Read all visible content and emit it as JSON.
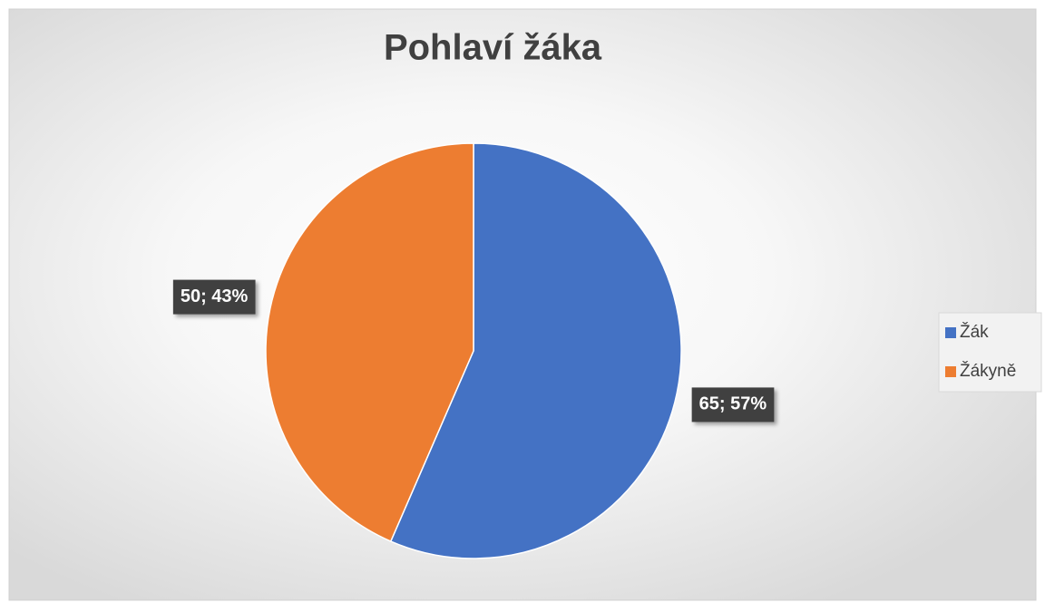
{
  "chart_data": {
    "type": "pie",
    "title": "Pohlaví žáka",
    "categories": [
      "Žák",
      "Žákyně"
    ],
    "values": [
      65,
      50
    ],
    "value_labels": [
      "65; 57%",
      "50; 43%"
    ],
    "colors": [
      "#4472c4",
      "#ed7d31"
    ],
    "legend": "right"
  }
}
